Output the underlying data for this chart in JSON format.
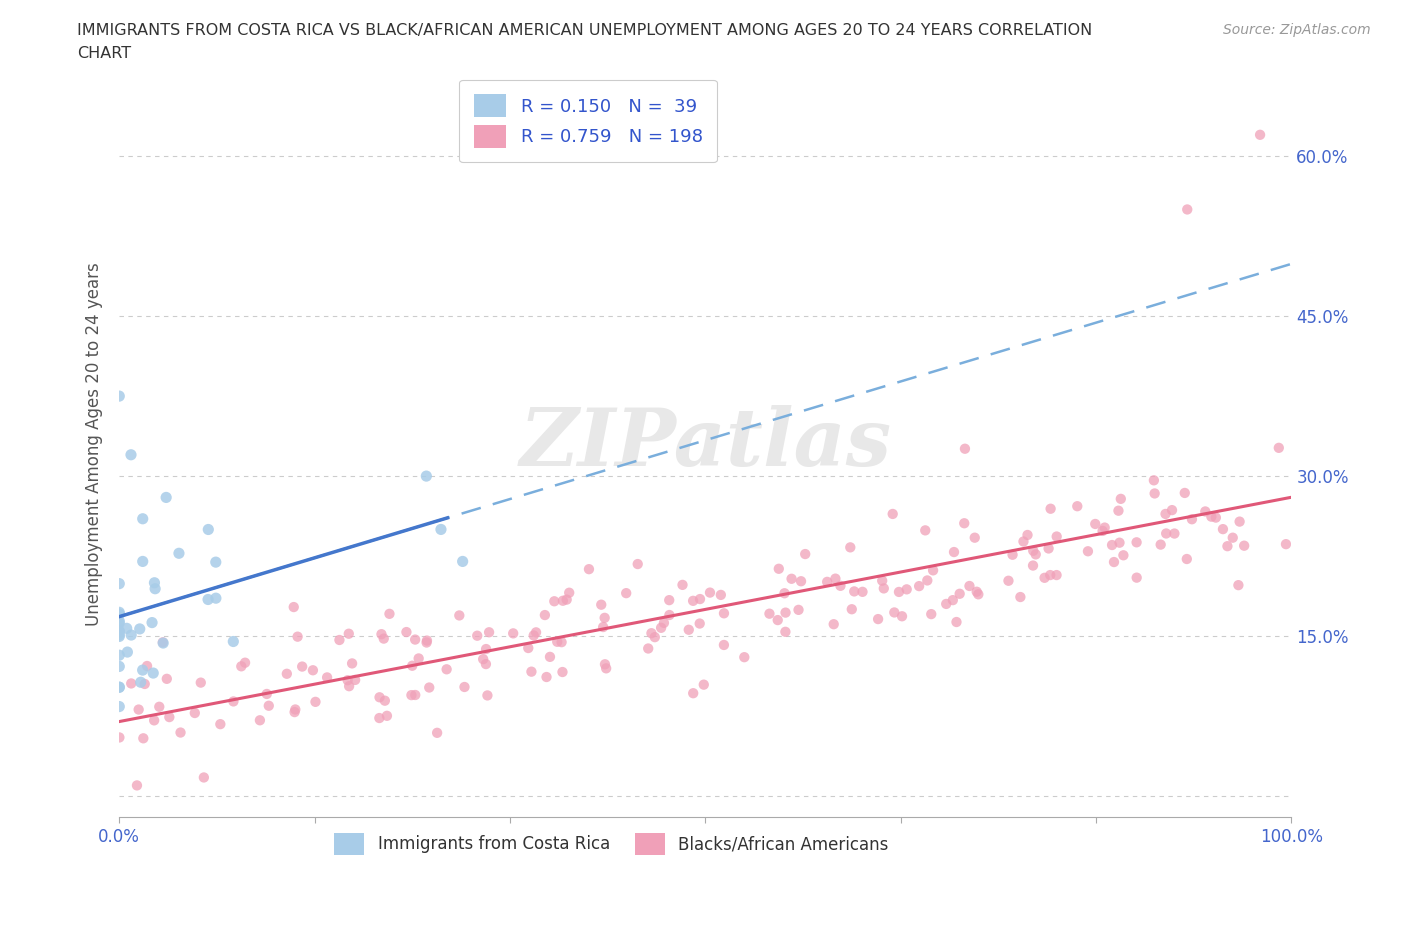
{
  "title_line1": "IMMIGRANTS FROM COSTA RICA VS BLACK/AFRICAN AMERICAN UNEMPLOYMENT AMONG AGES 20 TO 24 YEARS CORRELATION",
  "title_line2": "CHART",
  "source_text": "Source: ZipAtlas.com",
  "ylabel": "Unemployment Among Ages 20 to 24 years",
  "xlim": [
    0.0,
    1.0
  ],
  "ylim": [
    -0.02,
    0.68
  ],
  "color_cr": "#a8cce8",
  "color_cr_line": "#4477cc",
  "color_cr_line_dash": "#7aaedc",
  "color_baa": "#f0a0b8",
  "color_baa_line": "#e05878",
  "watermark_color": "#e8e8e8",
  "title_color": "#333333",
  "axis_label_color": "#4466cc",
  "ylabel_color": "#555555",
  "grid_color": "#cccccc"
}
